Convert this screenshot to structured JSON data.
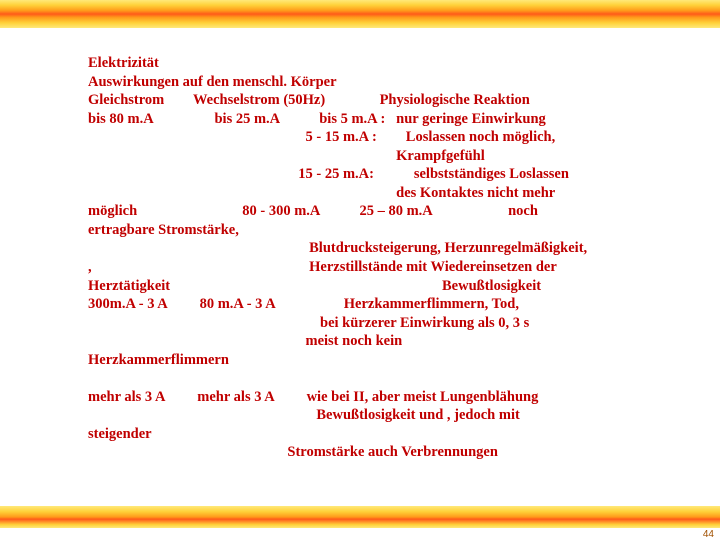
{
  "slide": {
    "page_number": "44",
    "colors": {
      "text": "#c00000",
      "background": "#ffffff"
    },
    "fontsize_pt": 14.5,
    "lines": [
      "Elektrizität",
      "Auswirkungen auf den menschl. Körper",
      "Gleichstrom        Wechselstrom (50Hz)               Physiologische Reaktion",
      "bis 80 m.A                 bis 25 m.A           bis 5 m.A :   nur geringe Einwirkung",
      "                                                            5 - 15 m.A :        Loslassen noch möglich,",
      "                                                                                     Krampfgefühl",
      "                                                          15 - 25 m.A:           selbstständiges Loslassen",
      "                                                                                     des Kontaktes nicht mehr",
      "möglich                             80 - 300 m.A           25 – 80 m.A                     noch",
      "ertragbare Stromstärke,",
      "                                                             Blutdrucksteigerung, Herzunregelmäßigkeit,",
      ",                                                            Herzstillstände mit Wiedereinsetzen der",
      "Herztätigkeit                                                                           Bewußtlosigkeit",
      "300m.A - 3 A         80 m.A - 3 A                   Herzkammerflimmern, Tod,",
      "                                                                bei kürzerer Einwirkung als 0, 3 s",
      "                                                            meist noch kein",
      "Herzkammerflimmern",
      "",
      "mehr als 3 A         mehr als 3 A         wie bei II, aber meist Lungenblähung",
      "                                                               Bewußtlosigkeit und , jedoch mit",
      "steigender",
      "                                                       Stromstärke auch Verbrennungen"
    ]
  }
}
